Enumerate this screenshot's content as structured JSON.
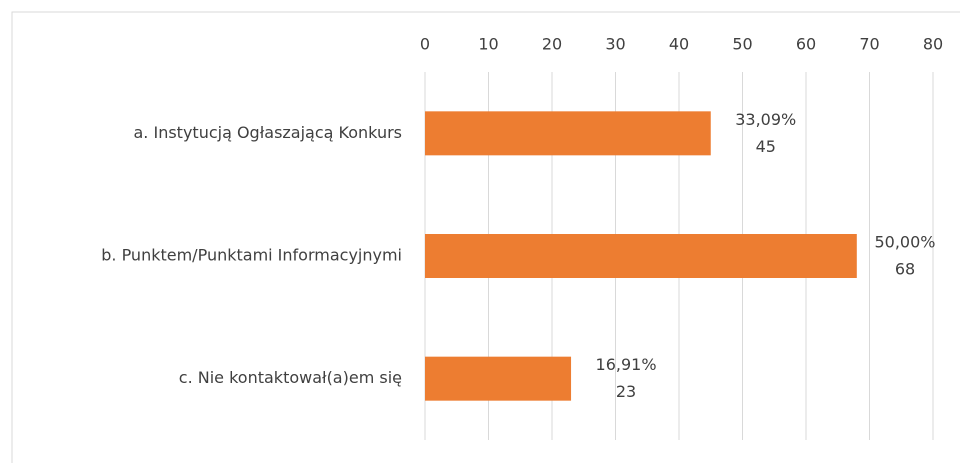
{
  "chart_data": {
    "type": "bar",
    "orientation": "horizontal",
    "categories": [
      "a. Instytucją Ogłaszającą Konkurs",
      "b. Punktem/Punktami Informacyjnymi",
      "c. Nie kontaktował(a)em się"
    ],
    "values": [
      45,
      68,
      23
    ],
    "percent_labels": [
      "33,09%",
      "50,00%",
      "16,91%"
    ],
    "color": "#ed7d31",
    "xlim": [
      0,
      80
    ],
    "xticks": [
      0,
      10,
      20,
      30,
      40,
      50,
      60,
      70,
      80
    ],
    "grid": true
  }
}
